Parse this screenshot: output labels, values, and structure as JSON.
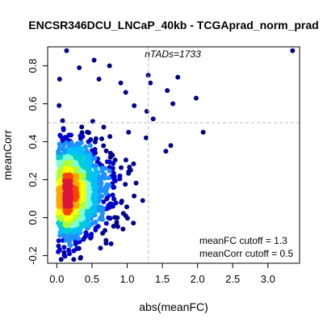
{
  "chart_data": {
    "type": "scatter",
    "title": "ENCSR346DCU_LNCaP_40kb - TCGAprad_norm_prad",
    "xlabel": "abs(meanFC)",
    "ylabel": "meanCorr",
    "xlim": [
      -0.13,
      3.45
    ],
    "ylim": [
      -0.24,
      0.9
    ],
    "x_ticks": [
      "0.0",
      "0.5",
      "1.0",
      "1.5",
      "2.0",
      "2.5",
      "3.0"
    ],
    "x_tick_values": [
      0,
      0.5,
      1.0,
      1.5,
      2.0,
      2.5,
      3.0
    ],
    "y_ticks": [
      "-0.2",
      "0.0",
      "0.2",
      "0.4",
      "0.6",
      "0.8"
    ],
    "y_tick_values": [
      -0.2,
      0.0,
      0.2,
      0.4,
      0.6,
      0.8
    ],
    "grid": false,
    "cutoff_lines": {
      "x": 1.3,
      "y": 0.5
    },
    "annotations": {
      "n_tads": "nTADs=1733",
      "fc_cutoff": "meanFC cutoff = 1.3",
      "corr_cutoff": "meanCorr cutoff = 0.5"
    },
    "density_colors": [
      "#00008B",
      "#0000CD",
      "#1E90FF",
      "#00BFFF",
      "#00CED1",
      "#7FFFD4",
      "#ADFF2F",
      "#FFFF00",
      "#FFA500",
      "#FF4500",
      "#DC143C"
    ],
    "n_points": 1733,
    "outliers": [
      {
        "x": 3.35,
        "y": 0.88
      },
      {
        "x": 0.14,
        "y": 0.88
      },
      {
        "x": 1.33,
        "y": 0.71
      },
      {
        "x": 1.72,
        "y": 0.74
      },
      {
        "x": 1.57,
        "y": 0.67
      },
      {
        "x": 1.65,
        "y": 0.6
      },
      {
        "x": 1.98,
        "y": 0.63
      },
      {
        "x": 2.08,
        "y": 0.45
      },
      {
        "x": 1.37,
        "y": 0.52
      },
      {
        "x": 1.55,
        "y": 0.35
      },
      {
        "x": 1.62,
        "y": 0.38
      },
      {
        "x": 1.27,
        "y": 0.42
      },
      {
        "x": 1.28,
        "y": 0.56
      },
      {
        "x": 1.1,
        "y": 0.59
      },
      {
        "x": 1.02,
        "y": 0.45
      },
      {
        "x": 0.98,
        "y": 0.66
      },
      {
        "x": 0.91,
        "y": 0.71
      },
      {
        "x": 1.3,
        "y": 0.75
      },
      {
        "x": 0.53,
        "y": 0.83
      },
      {
        "x": 0.75,
        "y": 0.8
      },
      {
        "x": 0.04,
        "y": 0.73
      },
      {
        "x": 0.32,
        "y": 0.79
      },
      {
        "x": 0.6,
        "y": 0.73
      },
      {
        "x": 1.22,
        "y": 0.09
      },
      {
        "x": 1.05,
        "y": 0.25
      },
      {
        "x": 0.86,
        "y": 0.0
      },
      {
        "x": 0.94,
        "y": -0.06
      },
      {
        "x": 0.7,
        "y": -0.12
      },
      {
        "x": 0.34,
        "y": -0.21
      },
      {
        "x": 0.02,
        "y": -0.18
      },
      {
        "x": 0.18,
        "y": -0.19
      },
      {
        "x": 0.62,
        "y": -0.16
      }
    ]
  }
}
